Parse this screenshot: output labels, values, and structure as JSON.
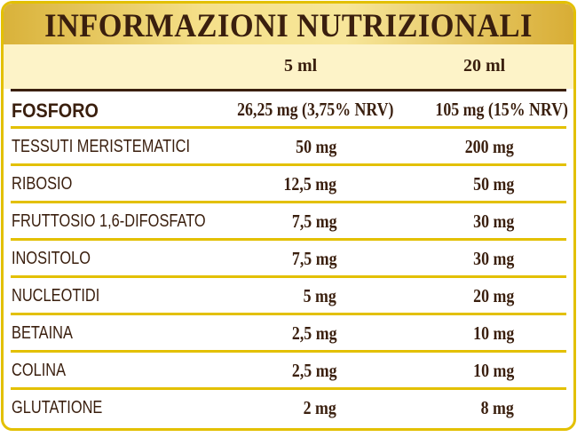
{
  "title": "INFORMAZIONI NUTRIZIONALI",
  "columns": [
    "5 ml",
    "20 ml"
  ],
  "highlight": {
    "label": "FOSFORO",
    "v5": "26,25 mg (3,75% NRV)",
    "v20": "105 mg (15% NRV)"
  },
  "rows": [
    {
      "label": "TESSUTI MERISTEMATICI",
      "v5": "50 mg",
      "v20": "200 mg"
    },
    {
      "label": "RIBOSIO",
      "v5": "12,5 mg",
      "v20": "50 mg"
    },
    {
      "label": "FRUTTOSIO 1,6-DIFOSFATO",
      "v5": "7,5 mg",
      "v20": "30 mg"
    },
    {
      "label": "INOSITOLO",
      "v5": "7,5 mg",
      "v20": "30 mg"
    },
    {
      "label": "NUCLEOTIDI",
      "v5": "5 mg",
      "v20": "20 mg"
    },
    {
      "label": "BETAINA",
      "v5": "2,5 mg",
      "v20": "10 mg"
    },
    {
      "label": "COLINA",
      "v5": "2,5 mg",
      "v20": "10 mg"
    },
    {
      "label": "GLUTATIONE",
      "v5": "2 mg",
      "v20": "8 mg"
    }
  ],
  "colors": {
    "border": "#e3c000",
    "text": "#3a1f0e",
    "header_bg": "#fdf3c8"
  }
}
